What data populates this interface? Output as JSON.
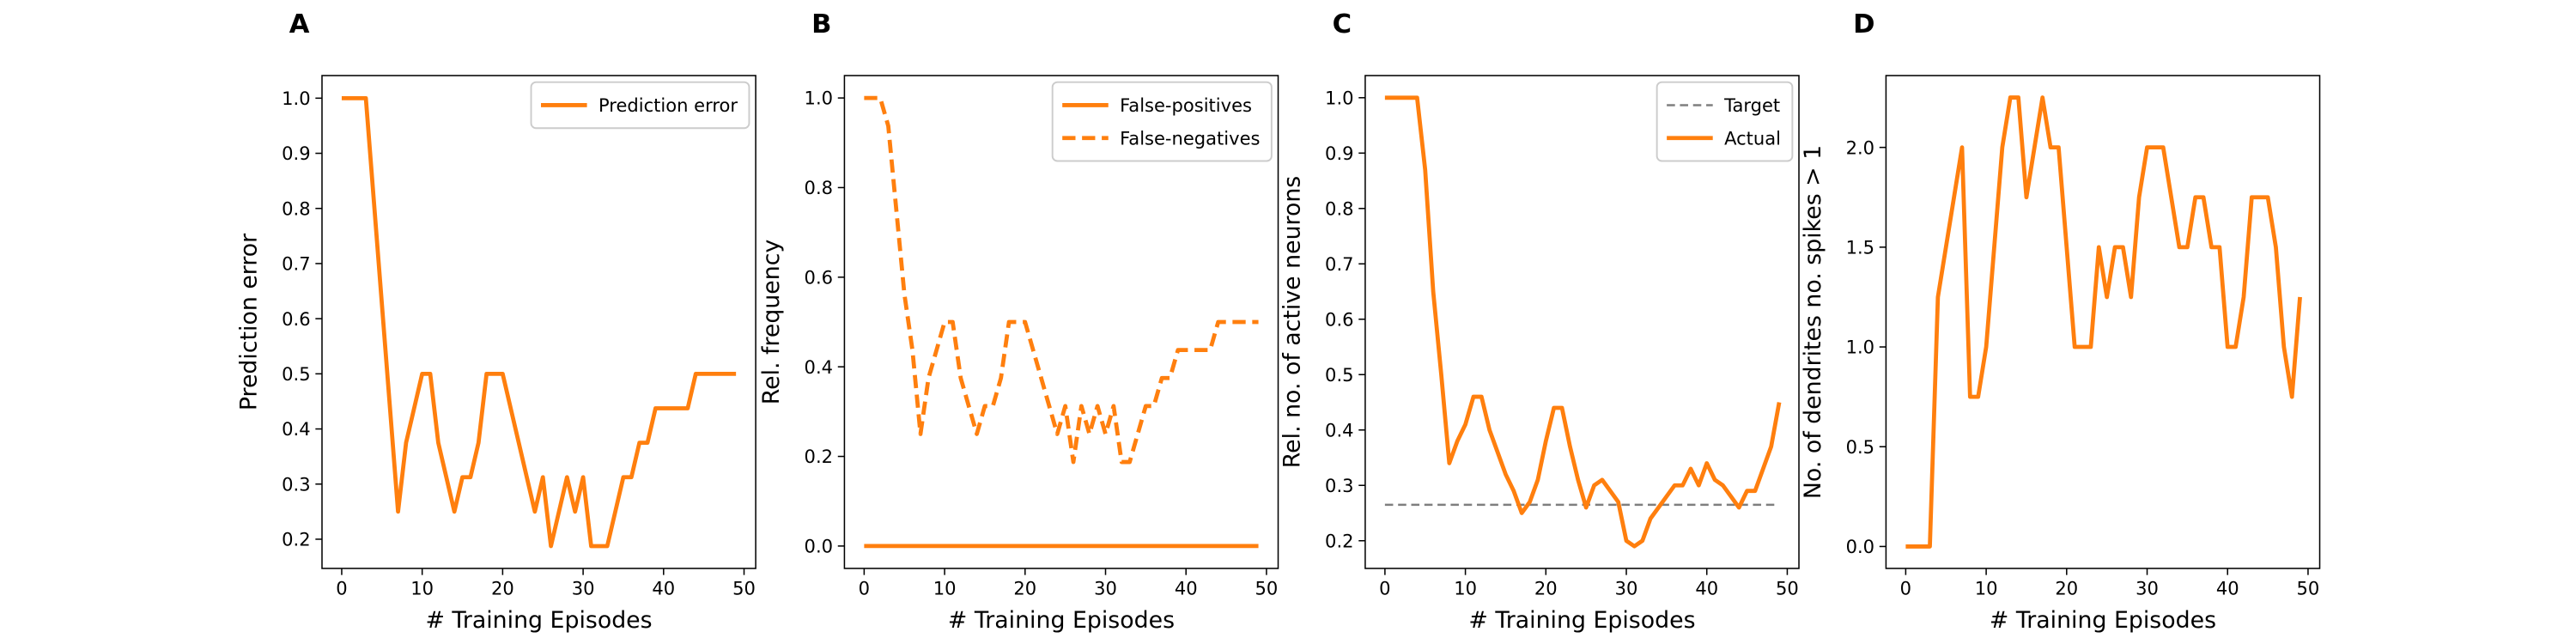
{
  "chart_data": [
    {
      "type": "line",
      "panel_label": "A",
      "xlabel": "# Training Episodes",
      "ylabel": "Prediction error",
      "legend": "upper right",
      "x": [
        0,
        1,
        2,
        3,
        4,
        5,
        6,
        7,
        8,
        9,
        10,
        11,
        12,
        13,
        14,
        15,
        16,
        17,
        18,
        19,
        20,
        21,
        22,
        23,
        24,
        25,
        26,
        27,
        28,
        29,
        30,
        31,
        32,
        33,
        34,
        35,
        36,
        37,
        38,
        39,
        40,
        41,
        42,
        43,
        44,
        45,
        46,
        47,
        48,
        49
      ],
      "xlim": [
        -2.45,
        51.45
      ],
      "xticks": [
        0,
        10,
        20,
        30,
        40,
        50
      ],
      "ylim": [
        0.147,
        1.041
      ],
      "yticks": [
        0.2,
        0.3,
        0.4,
        0.5,
        0.6,
        0.7,
        0.8,
        0.9,
        {
          "value": 1.0,
          "label": "1.0"
        }
      ],
      "series": [
        {
          "name": "Prediction error",
          "color": "#ff7f0e",
          "dash": "solid",
          "values": [
            1,
            1,
            1,
            1,
            0.8125,
            0.625,
            0.4375,
            0.25,
            0.375,
            0.4375,
            0.5,
            0.5,
            0.375,
            0.3125,
            0.25,
            0.3125,
            0.3125,
            0.375,
            0.5,
            0.5,
            0.5,
            0.4375,
            0.375,
            0.3125,
            0.25,
            0.3125,
            0.1875,
            0.25,
            0.3125,
            0.25,
            0.3125,
            0.1875,
            0.1875,
            0.1875,
            0.25,
            0.3125,
            0.3125,
            0.375,
            0.375,
            0.4375,
            0.4375,
            0.4375,
            0.4375,
            0.4375,
            0.5,
            0.5,
            0.5,
            0.5,
            0.5,
            0.5
          ]
        }
      ]
    },
    {
      "type": "line",
      "panel_label": "B",
      "xlabel": "# Training Episodes",
      "ylabel": "Rel. frequency",
      "legend": "upper right",
      "x": [
        0,
        1,
        2,
        3,
        4,
        5,
        6,
        7,
        8,
        9,
        10,
        11,
        12,
        13,
        14,
        15,
        16,
        17,
        18,
        19,
        20,
        21,
        22,
        23,
        24,
        25,
        26,
        27,
        28,
        29,
        30,
        31,
        32,
        33,
        34,
        35,
        36,
        37,
        38,
        39,
        40,
        41,
        42,
        43,
        44,
        45,
        46,
        47,
        48,
        49
      ],
      "xlim": [
        -2.45,
        51.45
      ],
      "xticks": [
        0,
        10,
        20,
        30,
        40,
        50
      ],
      "ylim": [
        -0.05,
        1.05
      ],
      "yticks": [
        {
          "value": 0.0,
          "label": "0.0"
        },
        0.2,
        0.4,
        0.6,
        0.8,
        {
          "value": 1.0,
          "label": "1.0"
        }
      ],
      "series": [
        {
          "name": "False-positives",
          "color": "#ff7f0e",
          "dash": "solid",
          "values": [
            0,
            0,
            0,
            0,
            0,
            0,
            0,
            0,
            0,
            0,
            0,
            0,
            0,
            0,
            0,
            0,
            0,
            0,
            0,
            0,
            0,
            0,
            0,
            0,
            0,
            0,
            0,
            0,
            0,
            0,
            0,
            0,
            0,
            0,
            0,
            0,
            0,
            0,
            0,
            0,
            0,
            0,
            0,
            0,
            0,
            0,
            0,
            0,
            0,
            0
          ]
        },
        {
          "name": "False-negatives",
          "color": "#ff7f0e",
          "dash": "dashed",
          "values": [
            1,
            1,
            1,
            0.9375,
            0.75,
            0.5625,
            0.4375,
            0.25,
            0.375,
            0.4375,
            0.5,
            0.5,
            0.375,
            0.3125,
            0.25,
            0.3125,
            0.3125,
            0.375,
            0.5,
            0.5,
            0.5,
            0.4375,
            0.375,
            0.3125,
            0.25,
            0.3125,
            0.1875,
            0.3125,
            0.25,
            0.3125,
            0.25,
            0.3125,
            0.1875,
            0.1875,
            0.25,
            0.3125,
            0.3125,
            0.375,
            0.375,
            0.4375,
            0.4375,
            0.4375,
            0.4375,
            0.4375,
            0.5,
            0.5,
            0.5,
            0.5,
            0.5,
            0.5
          ]
        }
      ]
    },
    {
      "type": "line",
      "panel_label": "C",
      "xlabel": "# Training Episodes",
      "ylabel": "Rel. no. of active neurons",
      "legend": "upper right",
      "x": [
        0,
        1,
        2,
        3,
        4,
        5,
        6,
        7,
        8,
        9,
        10,
        11,
        12,
        13,
        14,
        15,
        16,
        17,
        18,
        19,
        20,
        21,
        22,
        23,
        24,
        25,
        26,
        27,
        28,
        29,
        30,
        31,
        32,
        33,
        34,
        35,
        36,
        37,
        38,
        39,
        40,
        41,
        42,
        43,
        44,
        45,
        46,
        47,
        48,
        49
      ],
      "xlim": [
        -2.45,
        51.45
      ],
      "xticks": [
        0,
        10,
        20,
        30,
        40,
        50
      ],
      "ylim": [
        0.15,
        1.04
      ],
      "yticks": [
        0.2,
        0.3,
        0.4,
        0.5,
        0.6,
        0.7,
        0.8,
        0.9,
        {
          "value": 1.0,
          "label": "1.0"
        }
      ],
      "series": [
        {
          "name": "Target",
          "color": "#7f7f7f",
          "dash": "dashed",
          "values": [
            0.265,
            0.265,
            0.265,
            0.265,
            0.265,
            0.265,
            0.265,
            0.265,
            0.265,
            0.265,
            0.265,
            0.265,
            0.265,
            0.265,
            0.265,
            0.265,
            0.265,
            0.265,
            0.265,
            0.265,
            0.265,
            0.265,
            0.265,
            0.265,
            0.265,
            0.265,
            0.265,
            0.265,
            0.265,
            0.265,
            0.265,
            0.265,
            0.265,
            0.265,
            0.265,
            0.265,
            0.265,
            0.265,
            0.265,
            0.265,
            0.265,
            0.265,
            0.265,
            0.265,
            0.265,
            0.265,
            0.265,
            0.265,
            0.265,
            0.265
          ]
        },
        {
          "name": "Actual",
          "color": "#ff7f0e",
          "dash": "solid",
          "values": [
            1,
            1,
            1,
            1,
            1,
            0.87,
            0.65,
            0.5,
            0.34,
            0.38,
            0.41,
            0.46,
            0.46,
            0.4,
            0.36,
            0.32,
            0.29,
            0.25,
            0.27,
            0.31,
            0.38,
            0.44,
            0.44,
            0.37,
            0.31,
            0.26,
            0.3,
            0.31,
            0.29,
            0.27,
            0.2,
            0.19,
            0.2,
            0.24,
            0.26,
            0.28,
            0.3,
            0.3,
            0.33,
            0.3,
            0.34,
            0.31,
            0.3,
            0.28,
            0.26,
            0.29,
            0.29,
            0.33,
            0.37,
            0.45
          ]
        }
      ]
    },
    {
      "type": "line",
      "panel_label": "D",
      "xlabel": "# Training Episodes",
      "ylabel": "No. of dendrites no. spikes > 1",
      "x": [
        0,
        1,
        2,
        3,
        4,
        5,
        6,
        7,
        8,
        9,
        10,
        11,
        12,
        13,
        14,
        15,
        16,
        17,
        18,
        19,
        20,
        21,
        22,
        23,
        24,
        25,
        26,
        27,
        28,
        29,
        30,
        31,
        32,
        33,
        34,
        35,
        36,
        37,
        38,
        39,
        40,
        41,
        42,
        43,
        44,
        45,
        46,
        47,
        48,
        49
      ],
      "xlim": [
        -2.45,
        51.45
      ],
      "xticks": [
        0,
        10,
        20,
        30,
        40,
        50
      ],
      "ylim": [
        -0.11,
        2.36
      ],
      "yticks": [
        {
          "value": 0.0,
          "label": "0.0"
        },
        0.5,
        {
          "value": 1.0,
          "label": "1.0"
        },
        1.5,
        {
          "value": 2.0,
          "label": "2.0"
        }
      ],
      "series": [
        {
          "color": "#ff7f0e",
          "dash": "solid",
          "values": [
            0,
            0,
            0,
            0,
            1.25,
            1.5,
            1.75,
            2,
            0.75,
            0.75,
            1,
            1.5,
            2,
            2.25,
            2.25,
            1.75,
            2,
            2.25,
            2,
            2,
            1.5,
            1,
            1,
            1,
            1.5,
            1.25,
            1.5,
            1.5,
            1.25,
            1.75,
            2,
            2,
            2,
            1.75,
            1.5,
            1.5,
            1.75,
            1.75,
            1.5,
            1.5,
            1,
            1,
            1.25,
            1.75,
            1.75,
            1.75,
            1.5,
            1,
            0.75,
            1.25
          ]
        }
      ]
    }
  ]
}
